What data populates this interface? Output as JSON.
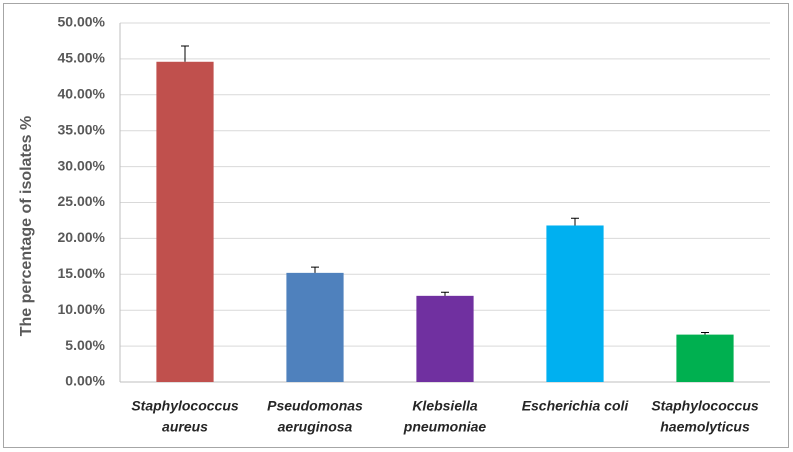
{
  "chart_data": {
    "type": "bar",
    "y_label": "The percentage of isolates %",
    "categories": [
      [
        "Staphylococcus",
        "aureus"
      ],
      [
        "Pseudomonas",
        "aeruginosa"
      ],
      [
        "Klebsiella",
        "pneumoniae"
      ],
      [
        "Escherichia coli"
      ],
      [
        "Staphylococcus",
        "haemolyticus"
      ]
    ],
    "values": [
      44.6,
      15.2,
      12.0,
      21.8,
      6.6
    ],
    "errors": [
      2.2,
      0.8,
      0.5,
      1.0,
      0.3
    ],
    "colors": [
      "#c0504d",
      "#4f81bd",
      "#7030a0",
      "#00b0f0",
      "#00b050"
    ],
    "ylim": [
      0,
      50
    ],
    "yticks": [
      {
        "value": 0,
        "label": "0.00%"
      },
      {
        "value": 5,
        "label": "5.00%"
      },
      {
        "value": 10,
        "label": "10.00%"
      },
      {
        "value": 15,
        "label": "15.00%"
      },
      {
        "value": 20,
        "label": "20.00%"
      },
      {
        "value": 25,
        "label": "25.00%"
      },
      {
        "value": 30,
        "label": "30.00%"
      },
      {
        "value": 35,
        "label": "35.00%"
      },
      {
        "value": 40,
        "label": "40.00%"
      },
      {
        "value": 45,
        "label": "45.00%"
      },
      {
        "value": 50,
        "label": "50.00%"
      }
    ],
    "grid": true
  }
}
